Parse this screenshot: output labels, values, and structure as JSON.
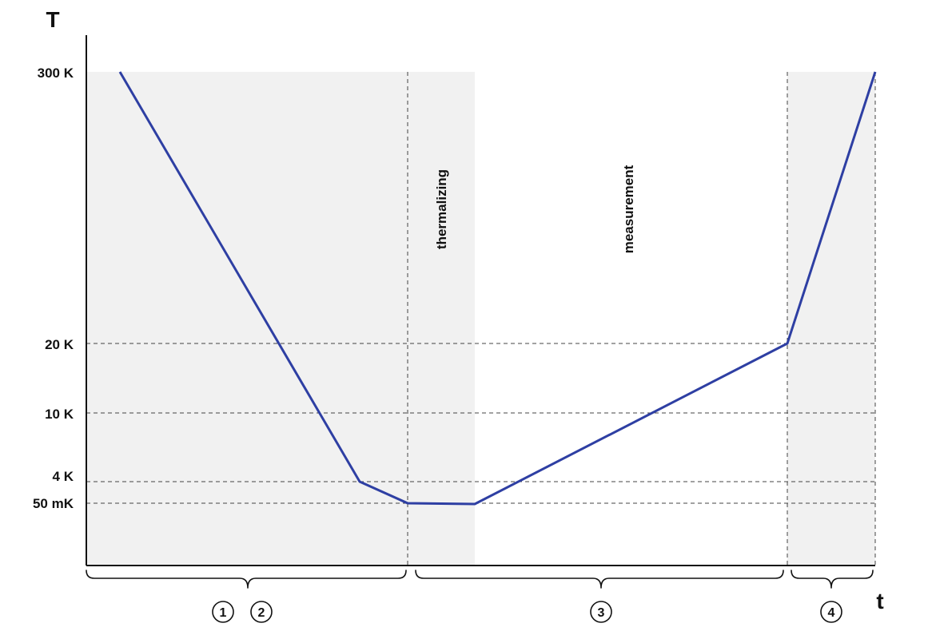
{
  "axes": {
    "y_title": "T",
    "x_title": "t"
  },
  "y_ticks": [
    "300 K",
    "20 K",
    "10 K",
    "4 K",
    "50 mK"
  ],
  "phases": {
    "thermalizing": "thermalizing",
    "measurement": "measurement"
  },
  "steps": [
    "1",
    "2",
    "3",
    "4"
  ],
  "colors": {
    "curve": "#2e3fa3",
    "shade": "#f1f1f1",
    "axis": "#111111",
    "guide": "#444444"
  }
}
